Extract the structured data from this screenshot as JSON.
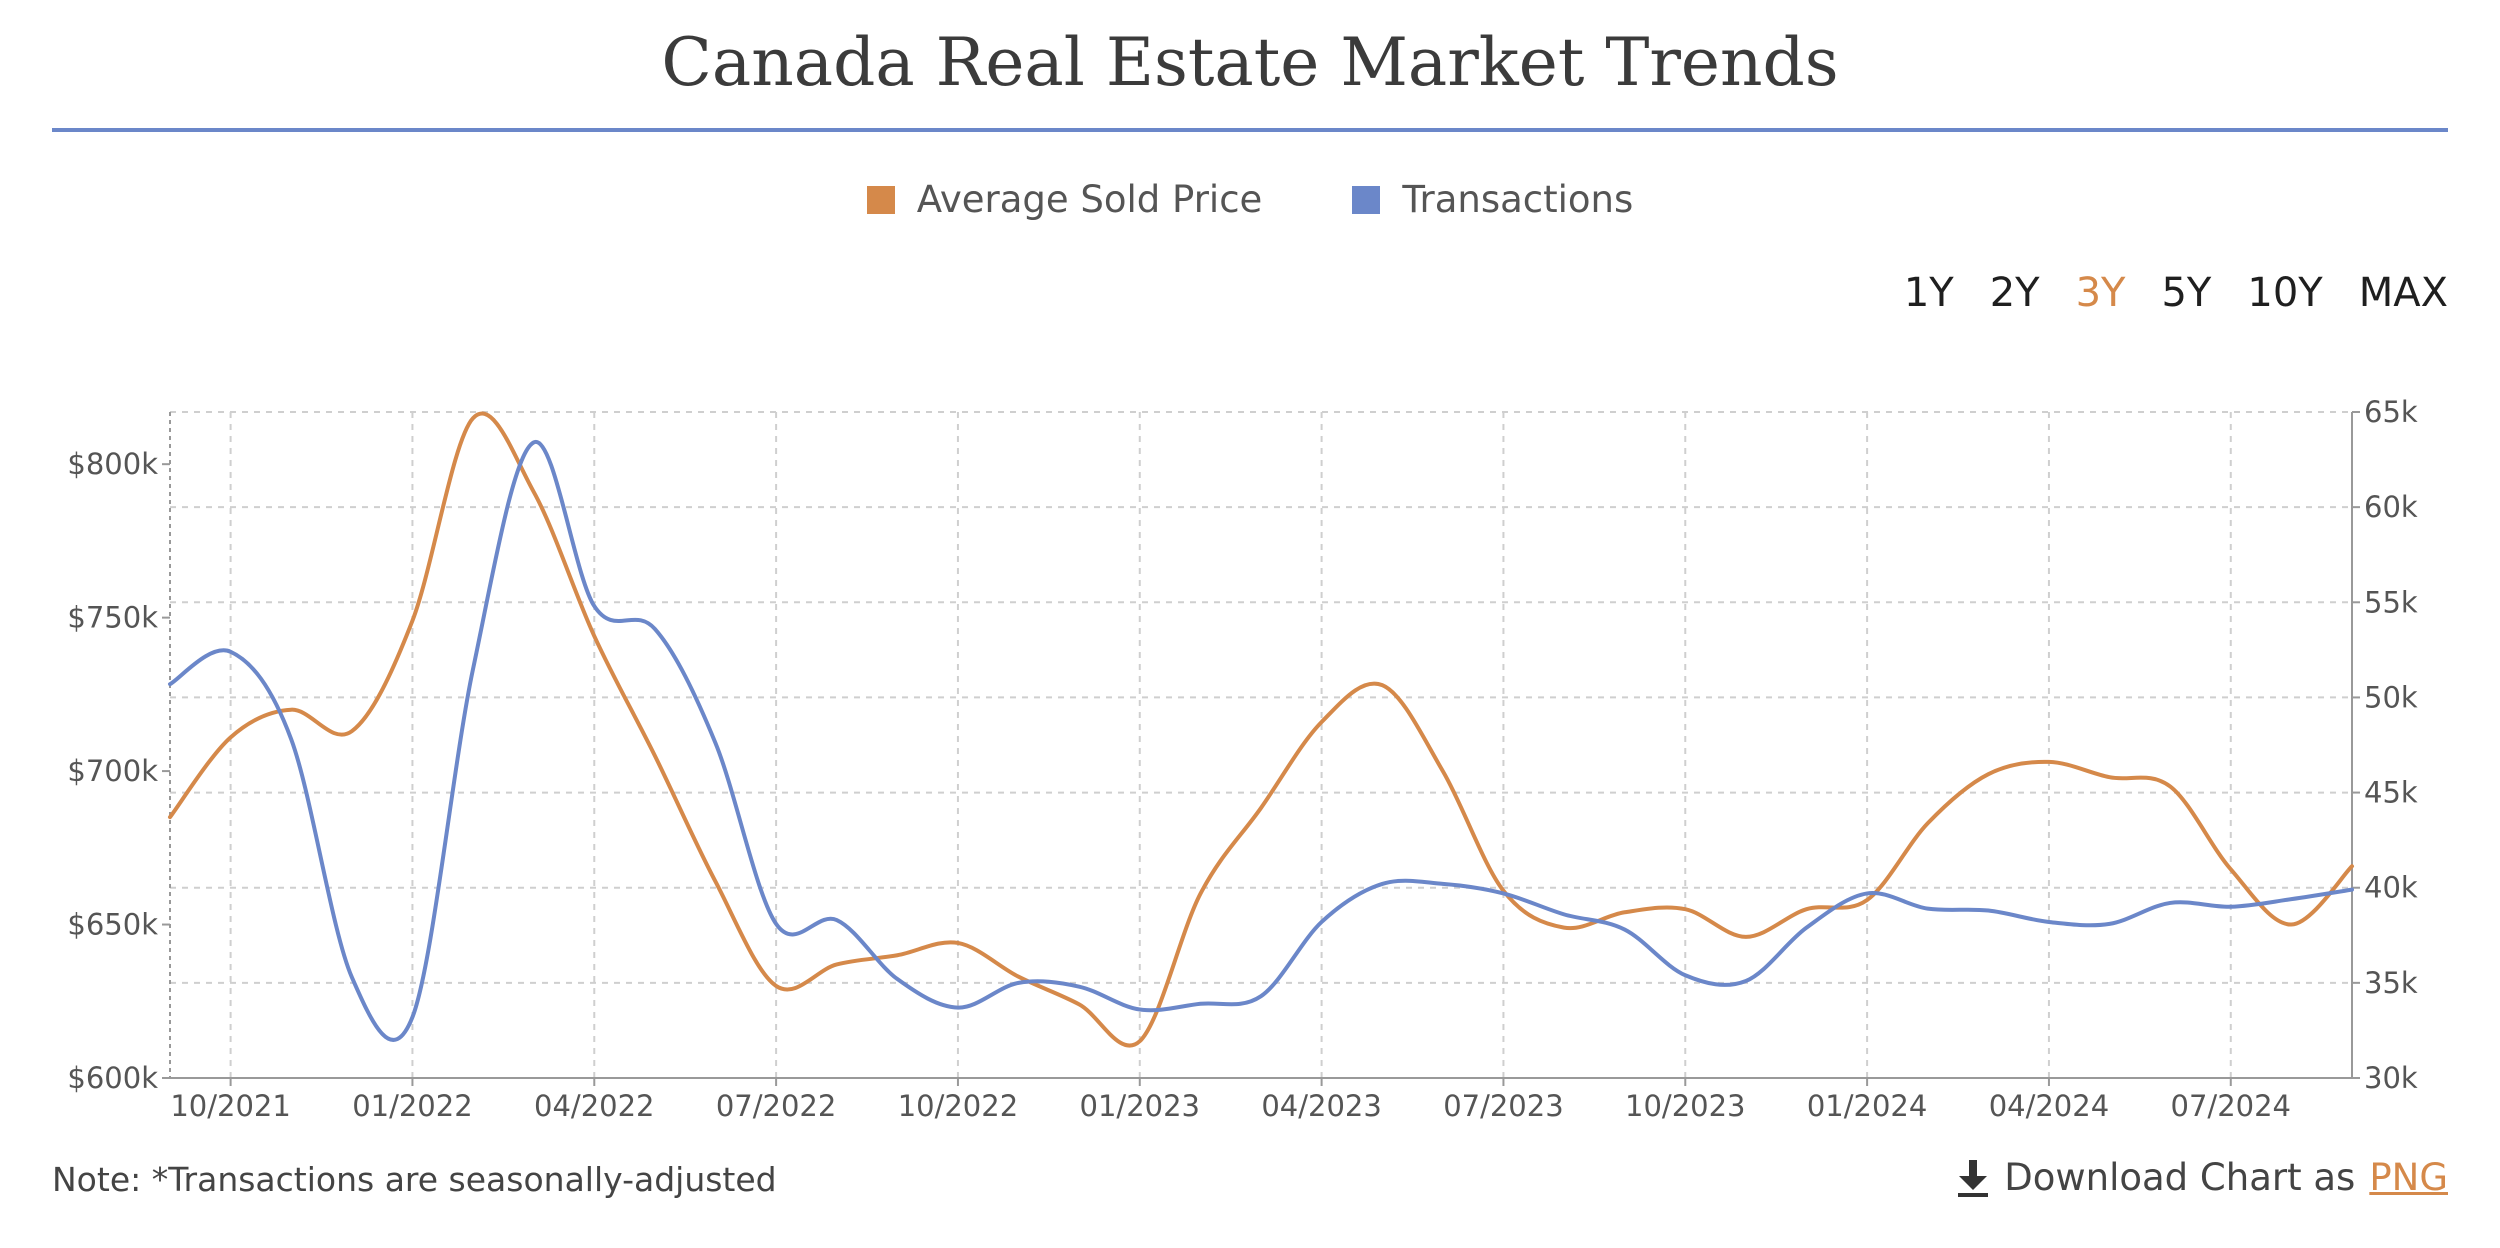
{
  "title": "Canada Real Estate Market Trends",
  "legend": [
    {
      "label": "Average Sold Price",
      "color": "#d5894a"
    },
    {
      "label": "Transactions",
      "color": "#6b87c9"
    }
  ],
  "range_buttons": [
    {
      "label": "1Y",
      "active": false
    },
    {
      "label": "2Y",
      "active": false
    },
    {
      "label": "3Y",
      "active": true
    },
    {
      "label": "5Y",
      "active": false
    },
    {
      "label": "10Y",
      "active": false
    },
    {
      "label": "MAX",
      "active": false
    }
  ],
  "note": "Note: *Transactions are seasonally-adjusted",
  "download": {
    "prefix": "Download Chart as",
    "link": "PNG",
    "icon": "download-icon"
  },
  "chart_data": {
    "type": "line",
    "x": [
      "2021-09",
      "2021-10",
      "2021-11",
      "2021-12",
      "2022-01",
      "2022-02",
      "2022-03",
      "2022-04",
      "2022-05",
      "2022-06",
      "2022-07",
      "2022-08",
      "2022-09",
      "2022-10",
      "2022-11",
      "2022-12",
      "2023-01",
      "2023-02",
      "2023-03",
      "2023-04",
      "2023-05",
      "2023-06",
      "2023-07",
      "2023-08",
      "2023-09",
      "2023-10",
      "2023-11",
      "2023-12",
      "2024-01",
      "2024-02",
      "2024-03",
      "2024-04",
      "2024-05",
      "2024-06",
      "2024-07",
      "2024-08",
      "2024-09"
    ],
    "x_tick_labels": [
      "10/2021",
      "01/2022",
      "04/2022",
      "07/2022",
      "10/2022",
      "01/2023",
      "04/2023",
      "07/2023",
      "10/2023",
      "01/2024",
      "04/2024",
      "07/2024"
    ],
    "series": [
      {
        "name": "Average Sold Price",
        "axis": "left",
        "color": "#d5894a",
        "values": [
          685000,
          711000,
          720000,
          713000,
          749000,
          815000,
          791000,
          744000,
          705000,
          664000,
          630000,
          637000,
          640000,
          644000,
          633000,
          624000,
          612000,
          660000,
          688000,
          716000,
          728000,
          700000,
          661000,
          649000,
          654000,
          655000,
          646000,
          655000,
          658000,
          683000,
          699000,
          703000,
          698000,
          695000,
          668000,
          650000,
          669000
        ]
      },
      {
        "name": "Transactions",
        "axis": "right",
        "color": "#6b87c9",
        "values": [
          50700,
          52400,
          47800,
          35300,
          33200,
          51500,
          63400,
          54800,
          53600,
          47600,
          38100,
          38300,
          35200,
          33700,
          35000,
          34800,
          33600,
          33900,
          34300,
          38200,
          40200,
          40200,
          39700,
          38600,
          37800,
          35400,
          35100,
          37900,
          39700,
          38900,
          38800,
          38200,
          38100,
          39200,
          39000,
          39400,
          39900
        ]
      }
    ],
    "y_left": {
      "ticks": [
        "$600k",
        "$650k",
        "$700k",
        "$750k",
        "$800k"
      ],
      "ylim": [
        600000,
        817000
      ]
    },
    "y_right": {
      "ticks": [
        "30k",
        "35k",
        "40k",
        "45k",
        "50k",
        "55k",
        "60k",
        "65k"
      ],
      "ylim": [
        30000,
        65000
      ]
    },
    "grid": true
  }
}
